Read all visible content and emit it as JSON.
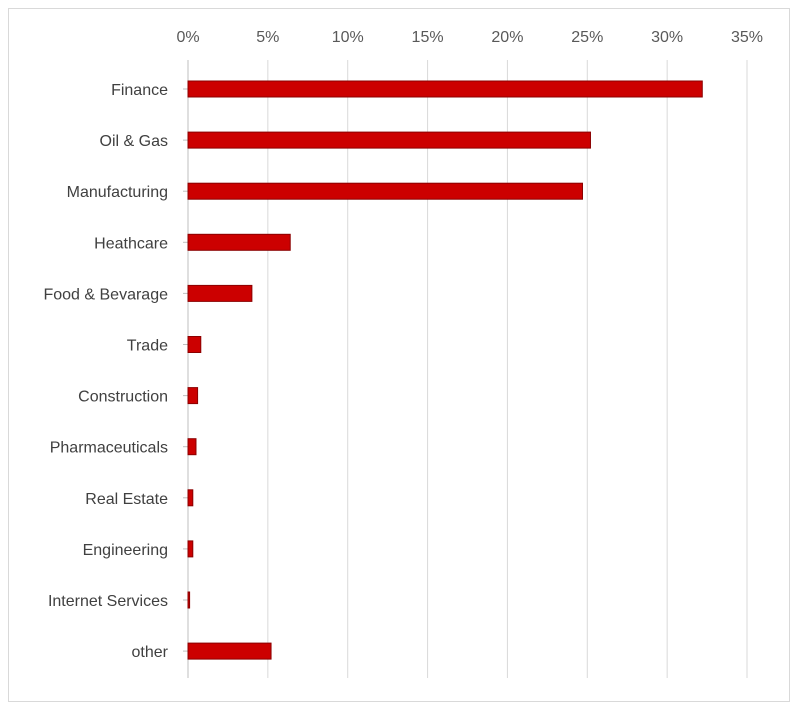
{
  "chart_data": {
    "type": "bar",
    "orientation": "horizontal",
    "categories": [
      "Finance",
      "Oil & Gas",
      "Manufacturing",
      "Heathcare",
      "Food & Bevarage",
      "Trade",
      "Construction",
      "Pharmaceuticals",
      "Real Estate",
      "Engineering",
      "Internet Services",
      "other"
    ],
    "values": [
      32.2,
      25.2,
      24.7,
      6.4,
      4.0,
      0.8,
      0.6,
      0.5,
      0.3,
      0.3,
      0.1,
      5.2
    ],
    "xlim": [
      0,
      35
    ],
    "xticks": [
      "0%",
      "5%",
      "10%",
      "15%",
      "20%",
      "25%",
      "30%",
      "35%"
    ],
    "xaxis_position": "top",
    "grid": "vertical",
    "legend": "none",
    "bar_color": "#cc0000",
    "bar_edge_color": "#8b0000"
  }
}
